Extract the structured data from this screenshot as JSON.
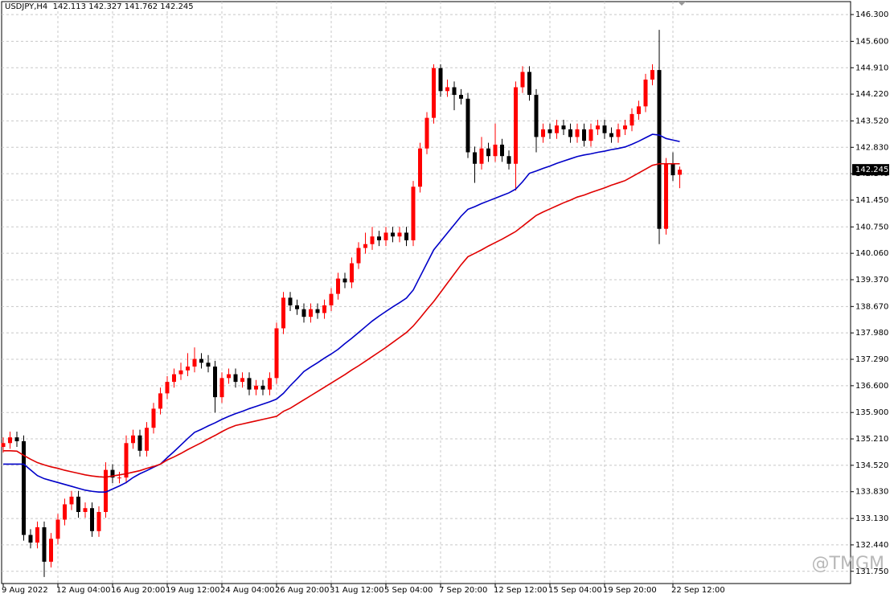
{
  "chart_data": {
    "type": "candlestick",
    "symbol": "USDJPY,H4",
    "watermark": "@TMGM",
    "up_color": "#ff0000",
    "down_color": "#000000",
    "grid": true,
    "ylim": [
      131.43,
      146.68
    ],
    "yticks": [
      {
        "value": 146.3,
        "label": "146.300"
      },
      {
        "value": 145.6,
        "label": "145.600"
      },
      {
        "value": 144.91,
        "label": "144.910"
      },
      {
        "value": 144.22,
        "label": "144.220"
      },
      {
        "value": 143.52,
        "label": "143.520"
      },
      {
        "value": 142.83,
        "label": "142.830"
      },
      {
        "value": 142.14,
        "label": "142.140"
      },
      {
        "value": 141.45,
        "label": "141.450"
      },
      {
        "value": 140.75,
        "label": "140.750"
      },
      {
        "value": 140.06,
        "label": "140.060"
      },
      {
        "value": 139.37,
        "label": "139.370"
      },
      {
        "value": 138.67,
        "label": "138.670"
      },
      {
        "value": 137.98,
        "label": "137.980"
      },
      {
        "value": 137.29,
        "label": "137.290"
      },
      {
        "value": 136.6,
        "label": "136.600"
      },
      {
        "value": 135.9,
        "label": "135.900"
      },
      {
        "value": 135.21,
        "label": "135.210"
      },
      {
        "value": 134.52,
        "label": "134.520"
      },
      {
        "value": 133.83,
        "label": "133.830"
      },
      {
        "value": 133.13,
        "label": "133.130"
      },
      {
        "value": 132.44,
        "label": "132.440"
      },
      {
        "value": 131.75,
        "label": "131.750"
      }
    ],
    "categories": [
      "9 Aug 2022",
      null,
      null,
      null,
      null,
      null,
      null,
      null,
      "12 Aug 04:00",
      null,
      null,
      null,
      null,
      null,
      null,
      null,
      "16 Aug 20:00",
      null,
      null,
      null,
      null,
      null,
      null,
      null,
      "19 Aug 12:00",
      null,
      null,
      null,
      null,
      null,
      null,
      null,
      "24 Aug 04:00",
      null,
      null,
      null,
      null,
      null,
      null,
      null,
      "26 Aug 20:00",
      null,
      null,
      null,
      null,
      null,
      null,
      null,
      "31 Aug 12:00",
      null,
      null,
      null,
      null,
      null,
      null,
      null,
      "5 Sep 04:00",
      null,
      null,
      null,
      null,
      null,
      null,
      null,
      "7 Sep 20:00",
      null,
      null,
      null,
      null,
      null,
      null,
      null,
      "12 Sep 12:00",
      null,
      null,
      null,
      null,
      null,
      null,
      null,
      "15 Sep 04:00",
      null,
      null,
      null,
      null,
      null,
      null,
      null,
      "19 Sep 20:00",
      null,
      null,
      null,
      null,
      null,
      null,
      null,
      null,
      null,
      "22 Sep 12:00",
      null
    ],
    "open": [
      135.0,
      135.1,
      135.25,
      135.15,
      132.7,
      132.5,
      132.9,
      132.0,
      132.6,
      133.1,
      133.5,
      133.7,
      133.3,
      133.4,
      132.8,
      133.3,
      134.4,
      134.2,
      134.2,
      135.1,
      135.3,
      134.9,
      135.5,
      136.0,
      136.4,
      136.7,
      136.9,
      137.0,
      137.1,
      137.3,
      137.2,
      137.1,
      136.3,
      136.8,
      136.9,
      136.7,
      136.8,
      136.5,
      136.6,
      136.5,
      136.8,
      138.1,
      138.9,
      138.7,
      138.6,
      138.4,
      138.6,
      138.5,
      138.7,
      139.0,
      139.4,
      139.3,
      139.8,
      140.2,
      140.3,
      140.5,
      140.4,
      140.6,
      140.5,
      140.6,
      140.4,
      141.8,
      142.8,
      143.6,
      144.9,
      144.3,
      144.4,
      144.2,
      144.1,
      142.7,
      142.4,
      142.8,
      142.6,
      142.9,
      142.6,
      142.4,
      144.4,
      144.8,
      144.2,
      143.1,
      143.3,
      143.2,
      143.4,
      143.3,
      143.1,
      143.3,
      143.0,
      143.3,
      143.4,
      143.2,
      143.1,
      143.3,
      143.4,
      143.7,
      143.9,
      144.6,
      144.85,
      140.7,
      142.4,
      142.113
    ],
    "high": [
      135.25,
      135.4,
      135.4,
      135.3,
      132.85,
      133.05,
      133.05,
      132.75,
      133.25,
      133.65,
      133.85,
      133.85,
      133.55,
      133.55,
      133.45,
      134.6,
      134.55,
      134.35,
      135.3,
      135.45,
      135.45,
      135.65,
      136.15,
      136.55,
      136.85,
      137.05,
      137.2,
      137.45,
      137.6,
      137.45,
      137.4,
      137.25,
      136.95,
      137.05,
      137.05,
      136.95,
      136.95,
      136.75,
      136.75,
      136.95,
      138.25,
      139.05,
      139.05,
      138.85,
      138.75,
      138.75,
      138.75,
      138.85,
      139.15,
      139.55,
      139.55,
      139.95,
      140.35,
      140.6,
      140.75,
      140.65,
      140.75,
      140.75,
      140.75,
      140.75,
      141.95,
      142.95,
      143.75,
      145.0,
      145.0,
      144.6,
      144.55,
      144.35,
      144.25,
      142.85,
      143.1,
      142.95,
      143.45,
      143.05,
      142.75,
      144.55,
      144.95,
      144.95,
      144.35,
      143.45,
      143.45,
      143.55,
      143.55,
      143.45,
      143.45,
      143.45,
      143.45,
      143.55,
      143.55,
      143.35,
      143.45,
      143.55,
      143.85,
      144.05,
      144.75,
      145.0,
      145.9,
      142.55,
      142.7,
      142.327
    ],
    "low": [
      134.85,
      134.95,
      135.0,
      132.55,
      132.35,
      132.35,
      131.6,
      131.85,
      132.45,
      132.95,
      133.35,
      133.15,
      133.15,
      132.65,
      132.65,
      133.15,
      134.05,
      134.05,
      134.05,
      134.95,
      134.75,
      134.75,
      135.35,
      135.85,
      136.25,
      136.55,
      136.75,
      136.85,
      136.95,
      137.05,
      136.95,
      135.9,
      136.15,
      136.65,
      136.55,
      136.55,
      136.35,
      136.35,
      136.35,
      136.35,
      136.65,
      137.95,
      138.55,
      138.45,
      138.25,
      138.25,
      138.35,
      138.35,
      138.55,
      138.85,
      139.15,
      139.15,
      139.65,
      140.05,
      140.15,
      140.25,
      140.25,
      140.35,
      140.35,
      140.25,
      140.25,
      141.65,
      142.65,
      143.45,
      144.15,
      144.15,
      143.8,
      143.95,
      142.55,
      141.9,
      142.25,
      142.45,
      142.45,
      142.45,
      142.25,
      141.7,
      144.25,
      144.05,
      142.7,
      142.95,
      143.05,
      143.05,
      143.15,
      142.95,
      142.95,
      142.85,
      142.85,
      143.15,
      143.05,
      142.95,
      142.95,
      143.15,
      143.25,
      143.55,
      143.75,
      144.45,
      140.3,
      140.55,
      141.95,
      141.762
    ],
    "close": [
      135.1,
      135.25,
      135.15,
      132.7,
      132.5,
      132.9,
      132.0,
      132.6,
      133.1,
      133.5,
      133.7,
      133.3,
      133.4,
      132.8,
      133.3,
      134.4,
      134.2,
      134.2,
      135.1,
      135.3,
      134.9,
      135.5,
      136.0,
      136.4,
      136.7,
      136.9,
      137.0,
      137.1,
      137.3,
      137.2,
      137.1,
      136.3,
      136.8,
      136.9,
      136.7,
      136.8,
      136.5,
      136.6,
      136.5,
      136.8,
      138.1,
      138.9,
      138.7,
      138.6,
      138.4,
      138.6,
      138.5,
      138.7,
      139.0,
      139.4,
      139.3,
      139.8,
      140.2,
      140.3,
      140.5,
      140.4,
      140.6,
      140.5,
      140.6,
      140.4,
      141.8,
      142.8,
      143.6,
      144.9,
      144.3,
      144.4,
      144.2,
      144.1,
      142.7,
      142.4,
      142.8,
      142.6,
      142.9,
      142.6,
      142.4,
      144.4,
      144.8,
      144.2,
      143.1,
      143.3,
      143.2,
      143.4,
      143.3,
      143.1,
      143.3,
      143.0,
      143.3,
      143.4,
      143.2,
      143.1,
      143.3,
      143.4,
      143.7,
      143.9,
      144.6,
      144.85,
      140.7,
      142.4,
      142.1,
      142.245
    ],
    "lines": [
      {
        "color": "#0000c8",
        "values": [
          134.55,
          134.55,
          134.55,
          134.55,
          134.4,
          134.25,
          134.17,
          134.12,
          134.07,
          134.02,
          133.97,
          133.92,
          133.87,
          133.84,
          133.82,
          133.82,
          133.9,
          133.98,
          134.07,
          134.2,
          134.3,
          134.38,
          134.47,
          134.55,
          134.72,
          134.88,
          135.05,
          135.22,
          135.38,
          135.46,
          135.55,
          135.63,
          135.72,
          135.8,
          135.87,
          135.93,
          136.0,
          136.06,
          136.12,
          136.18,
          136.25,
          136.4,
          136.6,
          136.78,
          136.97,
          137.09,
          137.2,
          137.32,
          137.43,
          137.55,
          137.7,
          137.84,
          137.99,
          138.14,
          138.29,
          138.42,
          138.54,
          138.66,
          138.77,
          138.89,
          139.1,
          139.45,
          139.8,
          140.15,
          140.37,
          140.59,
          140.81,
          141.03,
          141.21,
          141.28,
          141.36,
          141.43,
          141.5,
          141.57,
          141.64,
          141.74,
          141.93,
          142.15,
          142.21,
          142.28,
          142.34,
          142.41,
          142.47,
          142.53,
          142.59,
          142.63,
          142.66,
          142.7,
          142.73,
          142.77,
          142.8,
          142.84,
          142.91,
          142.99,
          143.08,
          143.17,
          143.15,
          143.06,
          143.02,
          142.98
        ]
      },
      {
        "color": "#e00000",
        "values": [
          134.9,
          134.9,
          134.89,
          134.78,
          134.68,
          134.59,
          134.53,
          134.48,
          134.44,
          134.39,
          134.35,
          134.31,
          134.27,
          134.24,
          134.22,
          134.21,
          134.24,
          134.27,
          134.3,
          134.34,
          134.38,
          134.44,
          134.49,
          134.55,
          134.66,
          134.74,
          134.83,
          134.93,
          135.02,
          135.11,
          135.21,
          135.3,
          135.4,
          135.49,
          135.56,
          135.6,
          135.64,
          135.68,
          135.72,
          135.76,
          135.8,
          135.93,
          136.01,
          136.12,
          136.23,
          136.34,
          136.45,
          136.56,
          136.67,
          136.78,
          136.89,
          137.01,
          137.12,
          137.24,
          137.36,
          137.48,
          137.6,
          137.73,
          137.86,
          137.99,
          138.16,
          138.37,
          138.59,
          138.8,
          139.04,
          139.28,
          139.52,
          139.76,
          139.97,
          140.06,
          140.15,
          140.25,
          140.34,
          140.43,
          140.53,
          140.63,
          140.77,
          140.91,
          141.05,
          141.14,
          141.22,
          141.3,
          141.38,
          141.45,
          141.53,
          141.58,
          141.65,
          141.71,
          141.77,
          141.84,
          141.9,
          141.96,
          142.06,
          142.16,
          142.26,
          142.36,
          142.4,
          142.4,
          142.4,
          142.4
        ]
      }
    ]
  }
}
